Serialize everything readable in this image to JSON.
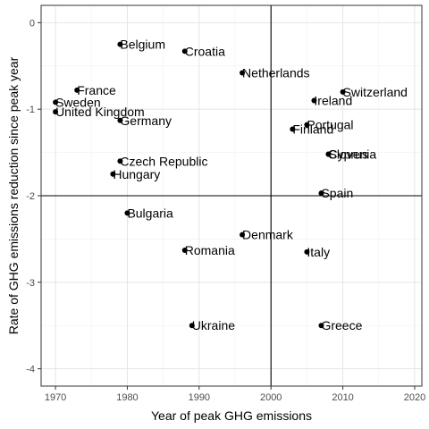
{
  "chart_data": {
    "type": "scatter",
    "title": "",
    "xlabel": "Year of peak GHG emissions",
    "ylabel": "Rate of GHG emissions reduction since peak year",
    "xlim": [
      1968,
      2021
    ],
    "ylim": [
      -4.2,
      0.2
    ],
    "x_ticks": [
      1970,
      1980,
      1990,
      2000,
      2010,
      2020
    ],
    "y_ticks": [
      0,
      -1,
      -2,
      -3,
      -4
    ],
    "x_tick_labels": [
      "1970",
      "1980",
      "1990",
      "2000",
      "2010",
      "2020"
    ],
    "y_tick_labels": [
      "0",
      "-1",
      "-2",
      "-3",
      "-4"
    ],
    "reference_lines": {
      "x": 2000,
      "y": -2
    },
    "grid": true,
    "colors": {
      "point": "#000000",
      "grid_major": "#e5e5e5",
      "grid_minor": "#f2f2f2",
      "panel_border": "#333333"
    },
    "points": [
      {
        "label": "Belgium",
        "x": 1979,
        "y": -0.25
      },
      {
        "label": "Croatia",
        "x": 1988,
        "y": -0.33
      },
      {
        "label": "Netherlands",
        "x": 1996,
        "y": -0.58
      },
      {
        "label": "France",
        "x": 1973,
        "y": -0.78
      },
      {
        "label": "Sweden",
        "x": 1970,
        "y": -0.92
      },
      {
        "label": "United Kingdom",
        "x": 1970,
        "y": -1.03
      },
      {
        "label": "Germany",
        "x": 1979,
        "y": -1.13
      },
      {
        "label": "Switzerland",
        "x": 2010,
        "y": -0.8
      },
      {
        "label": "Ireland",
        "x": 2006,
        "y": -0.9
      },
      {
        "label": "Portugal",
        "x": 2005,
        "y": -1.18
      },
      {
        "label": "Finland",
        "x": 2003,
        "y": -1.23
      },
      {
        "label": "Slovenia",
        "x": 2008,
        "y": -1.52
      },
      {
        "label": "Cyprus",
        "x": 2008,
        "y": -1.52
      },
      {
        "label": "Czech Republic",
        "x": 1979,
        "y": -1.6
      },
      {
        "label": "Hungary",
        "x": 1978,
        "y": -1.75
      },
      {
        "label": "Spain",
        "x": 2007,
        "y": -1.97
      },
      {
        "label": "Bulgaria",
        "x": 1980,
        "y": -2.2
      },
      {
        "label": "Denmark",
        "x": 1996,
        "y": -2.45
      },
      {
        "label": "Romania",
        "x": 1988,
        "y": -2.63
      },
      {
        "label": "Italy",
        "x": 2005,
        "y": -2.65
      },
      {
        "label": "Ukraine",
        "x": 1989,
        "y": -3.5
      },
      {
        "label": "Greece",
        "x": 2007,
        "y": -3.5
      }
    ]
  }
}
